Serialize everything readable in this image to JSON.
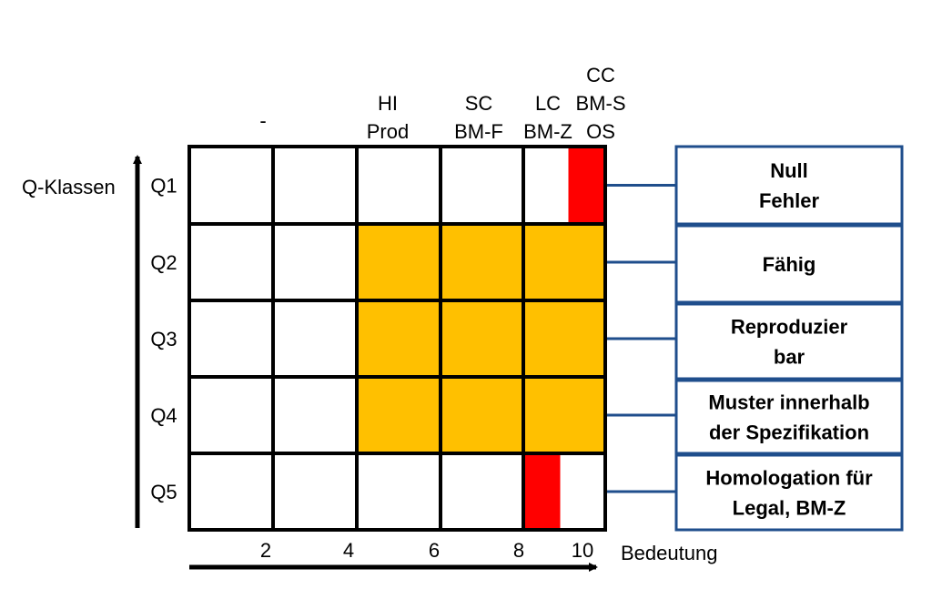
{
  "y_axis": {
    "title": "Q-Klassen",
    "rows": [
      "Q1",
      "Q2",
      "Q3",
      "Q4",
      "Q5"
    ]
  },
  "x_axis": {
    "title": "Bedeutung",
    "ticks": [
      "2",
      "4",
      "6",
      "8",
      "10"
    ]
  },
  "column_headers": [
    {
      "lines": [
        "-"
      ]
    },
    {
      "lines": [
        "HI",
        "Prod"
      ]
    },
    {
      "lines": [
        "SC",
        "BM-F"
      ]
    },
    {
      "lines": [
        "LC",
        "BM-Z"
      ]
    },
    {
      "lines": [
        "CC",
        "BM-S",
        "OS"
      ]
    }
  ],
  "grid": {
    "columns": 5,
    "rows": 5,
    "highlights": [
      {
        "color": "#FFC000",
        "row_from": 2,
        "row_to": 4,
        "col_from": 3,
        "col_to": 5,
        "portion": "full"
      },
      {
        "color": "#FF0000",
        "row_from": 1,
        "row_to": 1,
        "col_from": 5,
        "col_to": 5,
        "portion": "right-half"
      },
      {
        "color": "#FF0000",
        "row_from": 5,
        "row_to": 5,
        "col_from": 5,
        "col_to": 5,
        "portion": "left-half"
      }
    ]
  },
  "classes": [
    {
      "row": "Q1",
      "lines": [
        "Null",
        "Fehler"
      ]
    },
    {
      "row": "Q2",
      "lines": [
        "Fähig"
      ]
    },
    {
      "row": "Q3",
      "lines": [
        "Reproduzier",
        "bar"
      ]
    },
    {
      "row": "Q4",
      "lines": [
        "Muster innerhalb",
        "der Spezifikation"
      ]
    },
    {
      "row": "Q5",
      "lines": [
        "Homologation für",
        "Legal, BM-Z"
      ]
    }
  ],
  "colors": {
    "box_border": "#1F4E8C",
    "grid_line": "#000000",
    "orange": "#FFC000",
    "red": "#FF0000"
  }
}
